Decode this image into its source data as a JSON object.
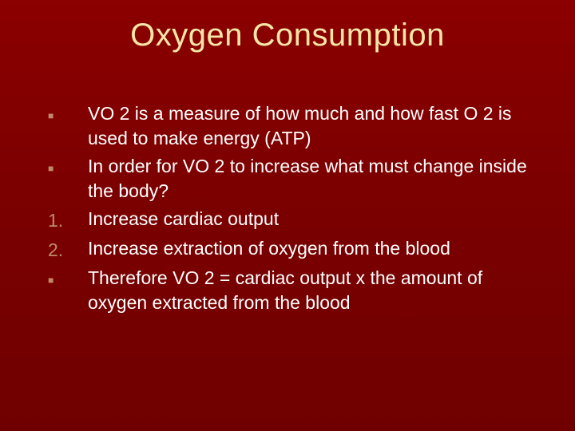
{
  "background_color": "#7a0000",
  "title": {
    "text": "Oxygen Consumption",
    "color": "#f5e6a8",
    "fontsize": 40,
    "align": "center"
  },
  "bullet_color": "#c08a6a",
  "text_color": "#ffffff",
  "body_fontsize": 23,
  "items": [
    {
      "marker_type": "square",
      "marker": "■",
      "text": "VO 2 is a measure of how much and how fast O 2 is used to make energy (ATP)"
    },
    {
      "marker_type": "square",
      "marker": "■",
      "text": "In order for VO 2 to increase what must change inside the body?"
    },
    {
      "marker_type": "number",
      "marker": "1.",
      "text": "Increase cardiac output"
    },
    {
      "marker_type": "number",
      "marker": "2.",
      "text": "Increase extraction of oxygen from the blood"
    },
    {
      "marker_type": "square",
      "marker": "■",
      "text": "Therefore VO 2 = cardiac output x the amount of oxygen extracted from the blood"
    }
  ]
}
